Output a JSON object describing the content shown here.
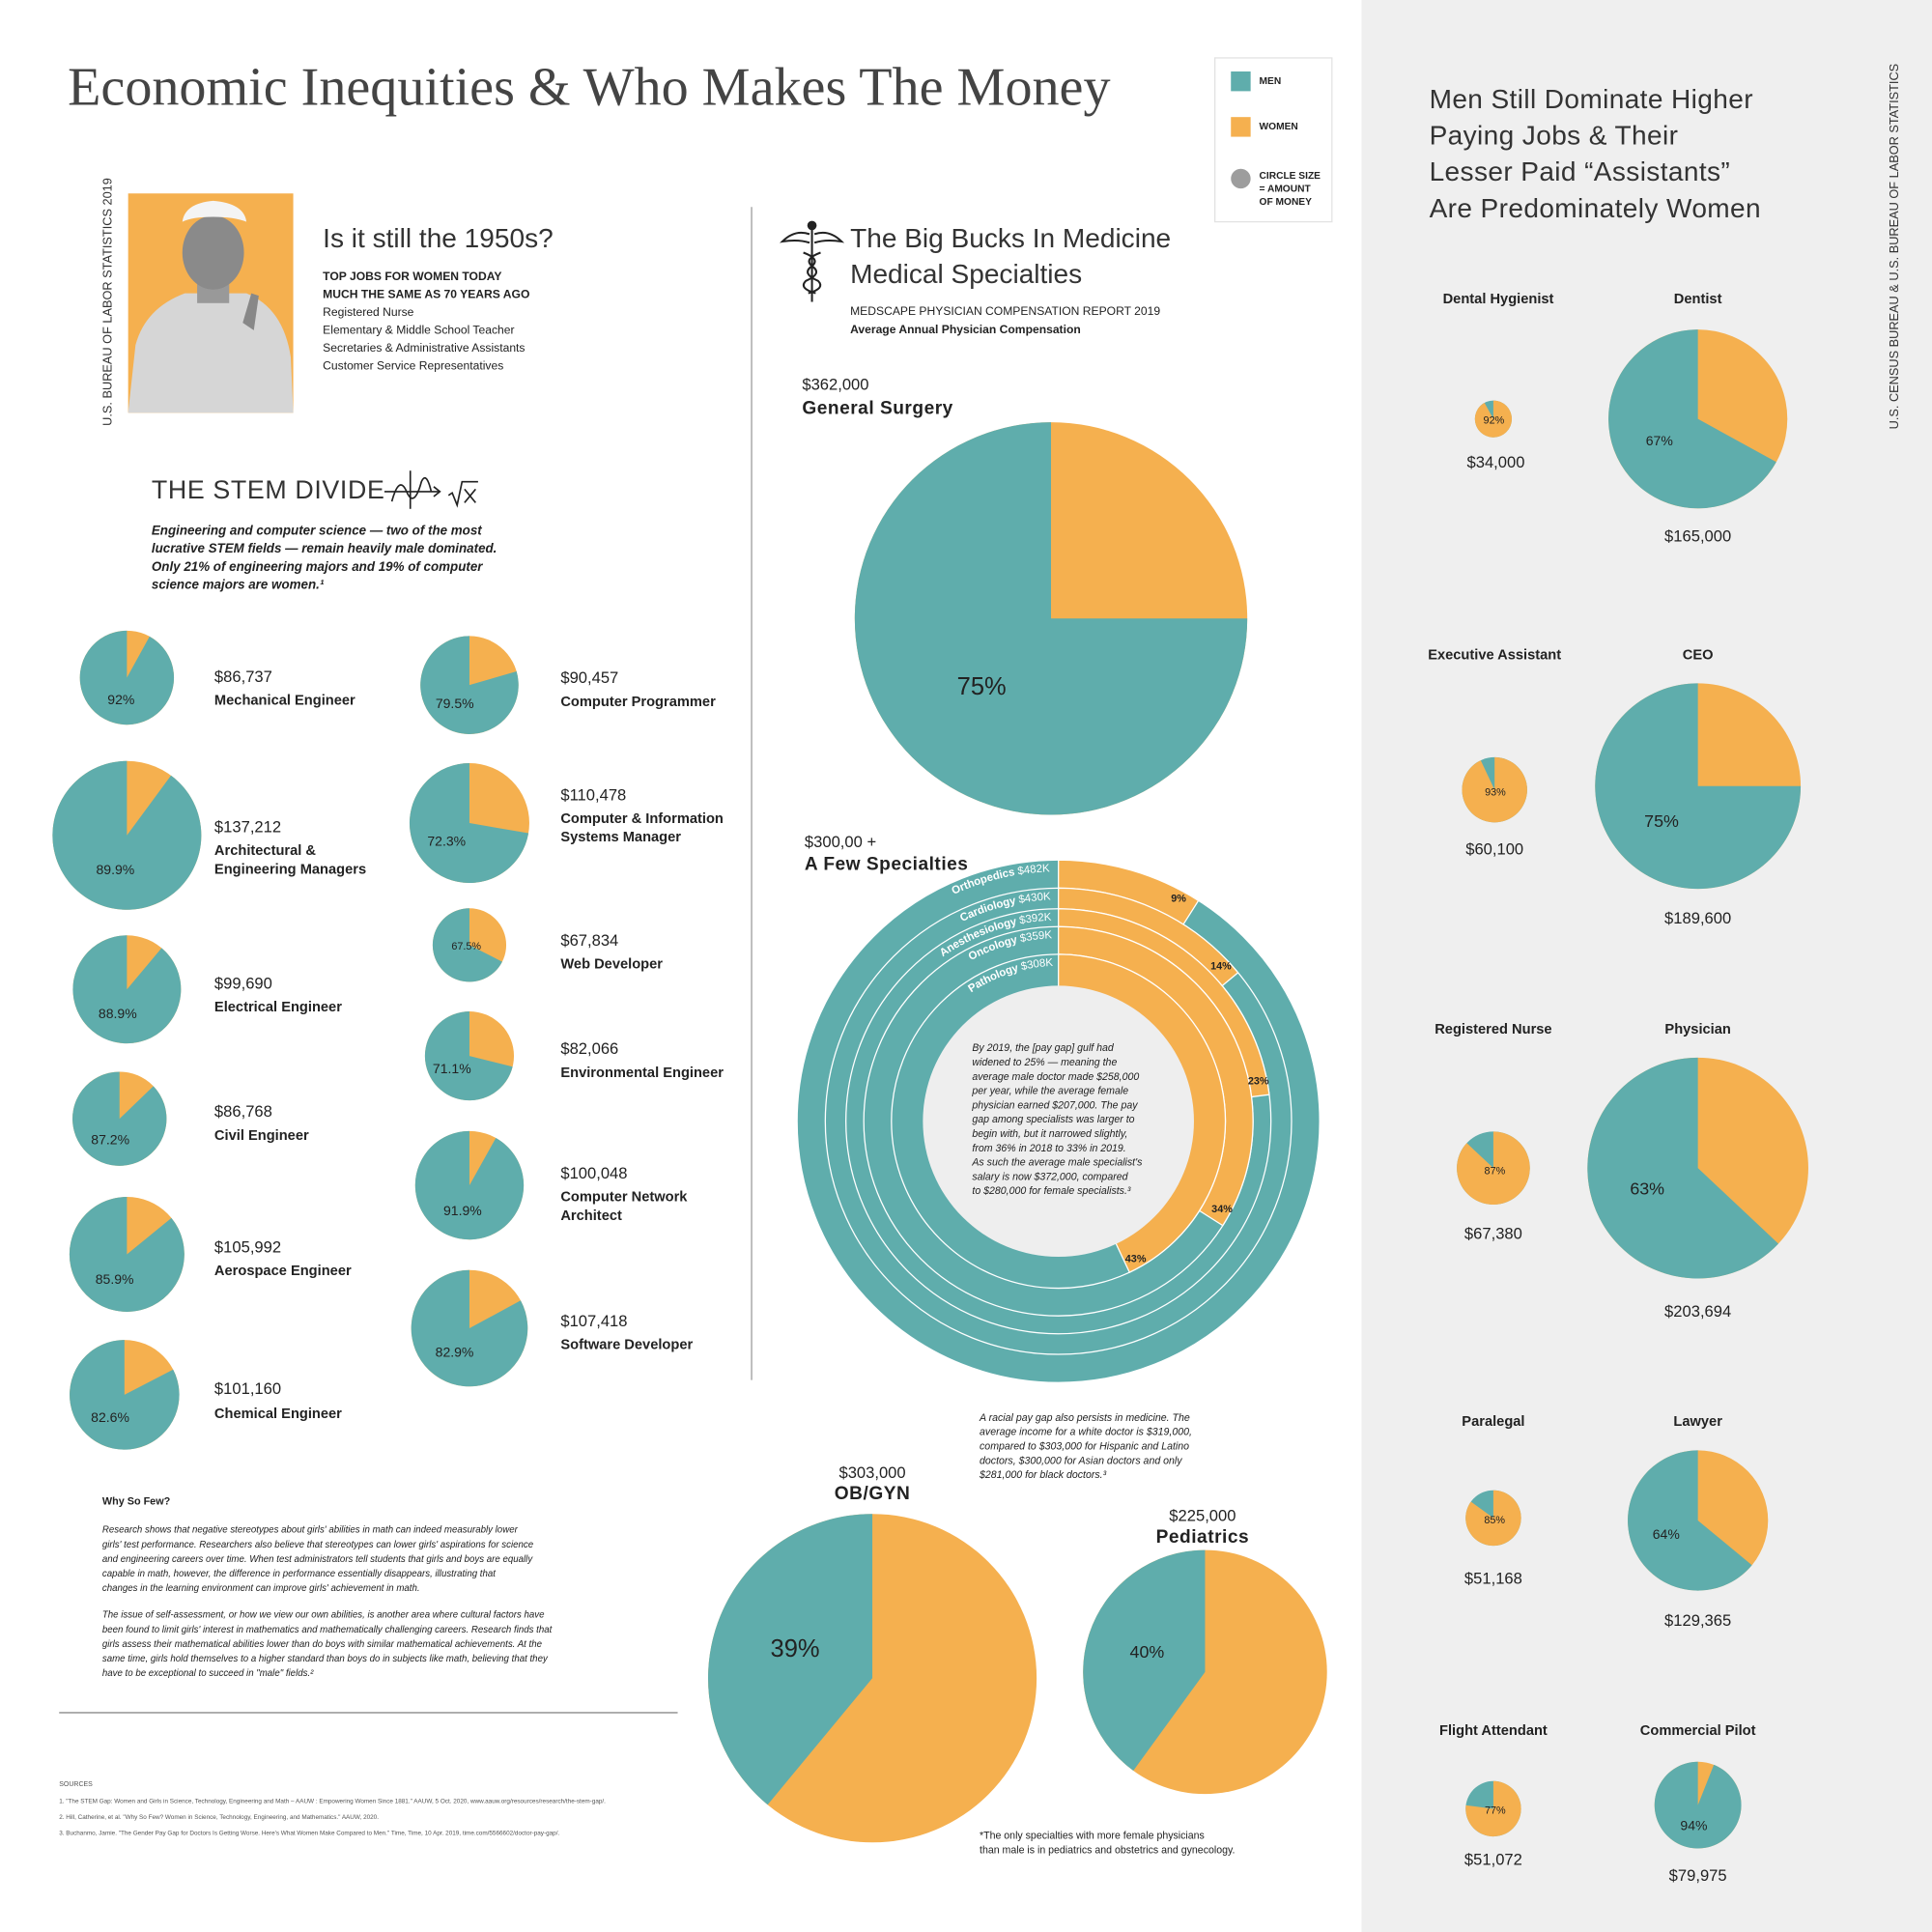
{
  "title": "Economic Inequities & Who Makes The Money",
  "legend": {
    "men": {
      "label": "MEN",
      "color": "#5fadac"
    },
    "women": {
      "label": "WOMEN",
      "color": "#f5b04f"
    },
    "size": [
      "CIRCLE SIZE",
      "= AMOUNT",
      "OF MONEY"
    ]
  },
  "fifties": {
    "source": "U.S. BUREAU OF LABOR STATISTICS 2019",
    "title": "Is it still the 1950s?",
    "subtitle": [
      "TOP JOBS FOR WOMEN TODAY",
      "MUCH THE SAME AS 70 YEARS AGO"
    ],
    "items": [
      "Registered Nurse",
      "Elementary & Middle School Teacher",
      "Secretaries & Administrative Assistants",
      "Customer Service Representatives"
    ]
  },
  "stem": {
    "title": "THE STEM DIVIDE",
    "intro": [
      "Engineering and computer science — two of the most",
      "lucrative STEM fields — remain heavily male dominated.",
      "Only 21% of engineering majors and 19% of computer",
      "science majors are women.¹"
    ]
  },
  "why": {
    "title": "Why So Few?",
    "paragraphs": [
      [
        "Research shows that negative stereotypes about girls' abilities in math can indeed measurably lower",
        "girls' test performance. Researchers also believe that stereotypes can lower girls' aspirations for science",
        "and engineering careers over time. When test administrators tell students that girls and boys are equally",
        "capable in math, however, the difference in performance essentially disappears, illustrating that",
        "changes in the learning environment can improve girls' achievement in math."
      ],
      [
        "The issue of self-assessment, or how we view our own abilities, is another area where cultural factors have",
        "been found to limit girls' interest in mathematics and mathematically challenging careers. Research finds that",
        "girls assess their mathematical abilities lower than do boys with similar mathematical achievements. At the",
        "same time, girls hold themselves to a higher standard than boys do in subjects like math, believing that they",
        "have to be exceptional to succeed in \"male\" fields.²"
      ]
    ]
  },
  "sources": {
    "title": "SOURCES",
    "items": [
      "1. \"The STEM Gap: Women and Girls in Science, Technology, Engineering and Math – AAUW : Empowering Women Since 1881.\" AAUW, 5 Oct. 2020, www.aauw.org/resources/research/the-stem-gap/.",
      "2. Hill, Catherine, et al. \"Why So Few? Women in Science, Technology, Engineering, and Mathematics.\" AAUW, 2020.",
      "3. Buchanmo, Jamie. \"The Gender Pay Gap for Doctors Is Getting Worse. Here's What Women Make Compared to Men.\" Time, Time, 10 Apr. 2019, time.com/5566602/doctor-pay-gap/."
    ]
  },
  "medicine": {
    "title": [
      "The Big Bucks In Medicine",
      "Medical Specialties"
    ],
    "source": "MEDSCAPE PHYSICIAN COMPENSATION REPORT 2019",
    "subtitle": "Average Annual Physician Compensation",
    "racial_note": [
      "A racial pay gap also persists in medicine. The",
      "average income for a white doctor is $319,000,",
      "compared to $303,000 for Hispanic and Latino",
      "doctors, $300,000 for Asian doctors and only",
      "$281,000 for black doctors.³"
    ],
    "footnote": [
      "*The only specialties with more female physicians",
      "than male is in pediatrics and obstetrics and gynecology."
    ]
  },
  "right": {
    "title": [
      "Men Still Dominate Higher",
      "Paying Jobs & Their",
      "Lesser Paid “Assistants”",
      "Are Predominately Women"
    ],
    "source": "U.S. CENSUS BUREAU & U.S. BUREAU OF LABOR STATISTICS"
  },
  "chart_data": [
    {
      "type": "pie",
      "title": "Mechanical Engineer",
      "amount": {
        "value": 86737,
        "label": "$86,737"
      },
      "values": [
        92
      ],
      "value_labels": [
        "92%"
      ],
      "color": "#5fadac",
      "rest_color": "#f5b04f",
      "direction": "counterclockwise"
    },
    {
      "type": "pie",
      "title": [
        "Architectural &",
        "Engineering Managers"
      ],
      "amount": {
        "value": 137212,
        "label": "$137,212"
      },
      "values": [
        89.9
      ],
      "value_labels": [
        "89.9%"
      ],
      "color": "#5fadac",
      "rest_color": "#f5b04f",
      "direction": "counterclockwise"
    },
    {
      "type": "pie",
      "title": "Electrical Engineer",
      "amount": {
        "value": 99690,
        "label": "$99,690"
      },
      "values": [
        88.9
      ],
      "value_labels": [
        "88.9%"
      ],
      "color": "#5fadac",
      "rest_color": "#f5b04f",
      "direction": "counterclockwise"
    },
    {
      "type": "pie",
      "title": "Civil Engineer",
      "amount": {
        "value": 86768,
        "label": "$86,768"
      },
      "values": [
        87.2
      ],
      "value_labels": [
        "87.2%"
      ],
      "color": "#5fadac",
      "rest_color": "#f5b04f",
      "direction": "counterclockwise"
    },
    {
      "type": "pie",
      "title": "Aerospace Engineer",
      "amount": {
        "value": 105992,
        "label": "$105,992"
      },
      "values": [
        85.9
      ],
      "value_labels": [
        "85.9%"
      ],
      "color": "#5fadac",
      "rest_color": "#f5b04f",
      "direction": "counterclockwise"
    },
    {
      "type": "pie",
      "title": "Chemical Engineer",
      "amount": {
        "value": 101160,
        "label": "$101,160"
      },
      "values": [
        82.6
      ],
      "value_labels": [
        "82.6%"
      ],
      "color": "#5fadac",
      "rest_color": "#f5b04f",
      "direction": "counterclockwise"
    },
    {
      "type": "pie",
      "title": "Computer Programmer",
      "amount": {
        "value": 90457,
        "label": "$90,457"
      },
      "values": [
        79.5
      ],
      "value_labels": [
        "79.5%"
      ],
      "color": "#5fadac",
      "rest_color": "#f5b04f",
      "direction": "counterclockwise"
    },
    {
      "type": "pie",
      "title": [
        "Computer & Information",
        "Systems Manager"
      ],
      "amount": {
        "value": 110478,
        "label": "$110,478"
      },
      "values": [
        72.3
      ],
      "value_labels": [
        "72.3%"
      ],
      "color": "#5fadac",
      "rest_color": "#f5b04f",
      "direction": "counterclockwise"
    },
    {
      "type": "pie",
      "title": "Web Developer",
      "amount": {
        "value": 67834,
        "label": "$67,834"
      },
      "values": [
        67.5
      ],
      "value_labels": [
        "67.5%"
      ],
      "color": "#5fadac",
      "rest_color": "#f5b04f",
      "direction": "counterclockwise"
    },
    {
      "type": "pie",
      "title": "Environmental Engineer",
      "amount": {
        "value": 82066,
        "label": "$82,066"
      },
      "values": [
        71.1
      ],
      "value_labels": [
        "71.1%"
      ],
      "color": "#5fadac",
      "rest_color": "#f5b04f",
      "direction": "counterclockwise"
    },
    {
      "type": "pie",
      "title": [
        "Computer Network",
        "Architect"
      ],
      "amount": {
        "value": 100048,
        "label": "$100,048"
      },
      "values": [
        91.9
      ],
      "value_labels": [
        "91.9%"
      ],
      "color": "#5fadac",
      "rest_color": "#f5b04f",
      "direction": "counterclockwise"
    },
    {
      "type": "pie",
      "title": "Software Developer",
      "amount": {
        "value": 107418,
        "label": "$107,418"
      },
      "values": [
        82.9
      ],
      "value_labels": [
        "82.9%"
      ],
      "color": "#5fadac",
      "rest_color": "#f5b04f",
      "direction": "counterclockwise"
    },
    {
      "type": "pie",
      "title": "General Surgery",
      "amount": {
        "value": 362000,
        "label": "$362,000"
      },
      "values": [
        75
      ],
      "value_labels": [
        "75%"
      ],
      "color": "#5fadac",
      "rest_color": "#f5b04f",
      "direction": "counterclockwise"
    },
    {
      "type": "radial",
      "title": "A Few Specialties",
      "subtitle": "$300,00 +",
      "categories": [
        "Orthopedics",
        "Cardiology",
        "Anesthesiology",
        "Oncology",
        "Pathology"
      ],
      "amounts": [
        482000,
        430000,
        392000,
        359000,
        308000
      ],
      "amount_labels": [
        "$482K",
        "$430K",
        "$392K",
        "$359K",
        "$308K"
      ],
      "values": [
        9,
        14,
        23,
        34,
        43
      ],
      "value_labels": [
        "9%",
        "14%",
        "23%",
        "34%",
        "43%"
      ],
      "color": "#f5b04f",
      "rest_color": "#5fadac",
      "direction": "clockwise",
      "note": [
        "By 2019, the [pay gap] gulf had",
        "widened to 25% — meaning the",
        "average male doctor made $258,000",
        "per year, while the average female",
        "physician earned $207,000. The pay",
        "gap among specialists was larger to",
        "begin with, but it narrowed slightly,",
        "from 36% in 2018 to 33% in 2019.",
        "As such the average male specialist's",
        "salary is now $372,000, compared",
        "to $280,000 for female specialists.³"
      ]
    },
    {
      "type": "pie",
      "title": "OB/GYN",
      "amount": {
        "value": 303000,
        "label": "$303,000"
      },
      "values": [
        39
      ],
      "value_labels": [
        "39%"
      ],
      "color": "#5fadac",
      "rest_color": "#f5b04f",
      "direction": "counterclockwise"
    },
    {
      "type": "pie",
      "title": "Pediatrics",
      "amount": {
        "value": 225000,
        "label": "$225,000"
      },
      "values": [
        40
      ],
      "value_labels": [
        "40%"
      ],
      "color": "#5fadac",
      "rest_color": "#f5b04f",
      "direction": "counterclockwise"
    },
    {
      "type": "pie",
      "title": "Dental Hygienist",
      "amount": {
        "value": 34000,
        "label": "$34,000"
      },
      "values": [
        92
      ],
      "value_labels": [
        "92%"
      ],
      "color": "#f5b04f",
      "rest_color": "#5fadac",
      "direction": "clockwise"
    },
    {
      "type": "pie",
      "title": "Dentist",
      "amount": {
        "value": 165000,
        "label": "$165,000"
      },
      "values": [
        67
      ],
      "value_labels": [
        "67%"
      ],
      "color": "#5fadac",
      "rest_color": "#f5b04f",
      "direction": "counterclockwise"
    },
    {
      "type": "pie",
      "title": "Executive Assistant",
      "amount": {
        "value": 60100,
        "label": "$60,100"
      },
      "values": [
        93
      ],
      "value_labels": [
        "93%"
      ],
      "color": "#f5b04f",
      "rest_color": "#5fadac",
      "direction": "clockwise"
    },
    {
      "type": "pie",
      "title": "CEO",
      "amount": {
        "value": 189600,
        "label": "$189,600"
      },
      "values": [
        75
      ],
      "value_labels": [
        "75%"
      ],
      "color": "#5fadac",
      "rest_color": "#f5b04f",
      "direction": "counterclockwise"
    },
    {
      "type": "pie",
      "title": "Registered Nurse",
      "amount": {
        "value": 67380,
        "label": "$67,380"
      },
      "values": [
        87
      ],
      "value_labels": [
        "87%"
      ],
      "color": "#f5b04f",
      "rest_color": "#5fadac",
      "direction": "clockwise"
    },
    {
      "type": "pie",
      "title": "Physician",
      "amount": {
        "value": 203694,
        "label": "$203,694"
      },
      "values": [
        63
      ],
      "value_labels": [
        "63%"
      ],
      "color": "#5fadac",
      "rest_color": "#f5b04f",
      "direction": "counterclockwise"
    },
    {
      "type": "pie",
      "title": "Paralegal",
      "amount": {
        "value": 51168,
        "label": "$51,168"
      },
      "values": [
        85
      ],
      "value_labels": [
        "85%"
      ],
      "color": "#f5b04f",
      "rest_color": "#5fadac",
      "direction": "clockwise"
    },
    {
      "type": "pie",
      "title": "Lawyer",
      "amount": {
        "value": 129365,
        "label": "$129,365"
      },
      "values": [
        64
      ],
      "value_labels": [
        "64%"
      ],
      "color": "#5fadac",
      "rest_color": "#f5b04f",
      "direction": "counterclockwise"
    },
    {
      "type": "pie",
      "title": "Flight Attendant",
      "amount": {
        "value": 51072,
        "label": "$51,072"
      },
      "values": [
        77
      ],
      "value_labels": [
        "77%"
      ],
      "color": "#f5b04f",
      "rest_color": "#5fadac",
      "direction": "clockwise"
    },
    {
      "type": "pie",
      "title": "Commercial Pilot",
      "amount": {
        "value": 79975,
        "label": "$79,975"
      },
      "values": [
        94
      ],
      "value_labels": [
        "94%"
      ],
      "color": "#5fadac",
      "rest_color": "#f5b04f",
      "direction": "counterclockwise"
    }
  ]
}
